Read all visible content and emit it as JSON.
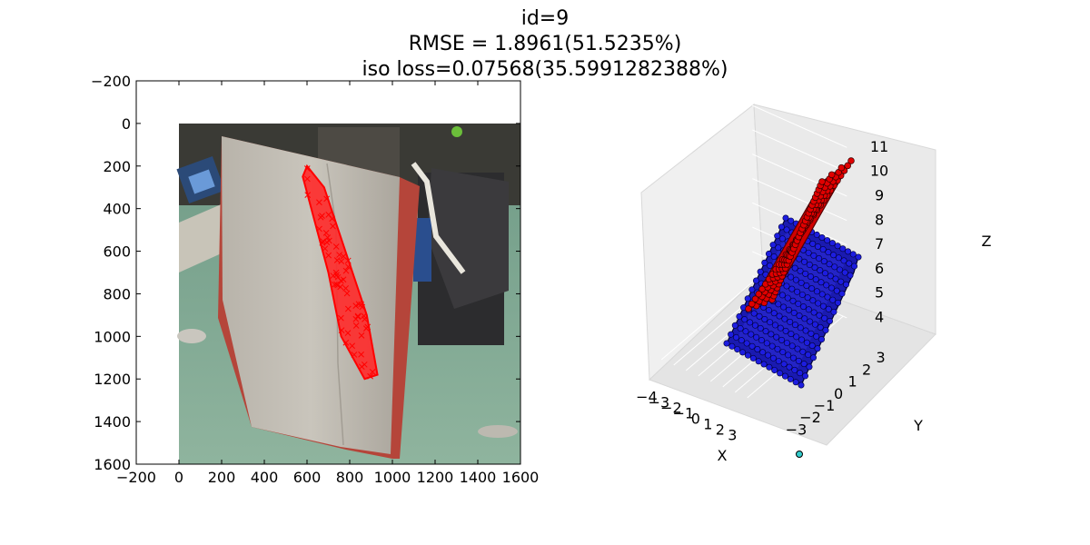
{
  "figure": {
    "title_lines": [
      "id=9",
      "RMSE = 1.8961(51.5235%)",
      "iso loss=0.07568(35.5991282388%)"
    ]
  },
  "chart_data": [
    {
      "type": "scatter",
      "subplot": "image-overlay",
      "title": "",
      "xlabel": "",
      "ylabel": "",
      "xlim": [
        -200,
        1600
      ],
      "ylim": [
        1600,
        -200
      ],
      "xticks": [
        "−200",
        "0",
        "200",
        "400",
        "600",
        "800",
        "1000",
        "1200",
        "1400",
        "1600"
      ],
      "yticks": [
        "−200",
        "0",
        "200",
        "400",
        "600",
        "800",
        "1000",
        "1200",
        "1400",
        "1600"
      ],
      "image_extent": {
        "x": [
          0,
          1600
        ],
        "y": [
          0,
          1600
        ]
      },
      "image_description": "photo of a white cushion hanging in an office",
      "grid": false,
      "series": [
        {
          "marker": "x",
          "color": "#ff0000",
          "outline": [
            [
              600,
              200
            ],
            [
              680,
              300
            ],
            [
              780,
              600
            ],
            [
              880,
              900
            ],
            [
              930,
              1180
            ],
            [
              870,
              1200
            ],
            [
              760,
              1000
            ],
            [
              700,
              700
            ],
            [
              620,
              400
            ],
            [
              580,
              250
            ]
          ]
        }
      ]
    },
    {
      "type": "scatter",
      "subplot": "3d",
      "title": "",
      "xlabel": "X",
      "ylabel": "Y",
      "zlabel": "Z",
      "xticks": [
        "−4",
        "−3",
        "−2",
        "−1",
        "0",
        "1",
        "2",
        "3"
      ],
      "yticks": [
        "−3",
        "−2",
        "−1",
        "0",
        "1",
        "2",
        "3"
      ],
      "zticks": [
        "4",
        "5",
        "6",
        "7",
        "8",
        "9",
        "10",
        "11"
      ],
      "xlim": [
        -4,
        3
      ],
      "ylim": [
        -3,
        3
      ],
      "zlim": [
        4,
        11
      ],
      "grid": true,
      "series": [
        {
          "color": "#0000cc",
          "marker": "o",
          "points": [
            [
              -1.5,
              2.8,
              7.0
            ],
            [
              3.3,
              3.0,
              7.3
            ],
            [
              -3.5,
              -1.8,
              4.1
            ],
            [
              1.5,
              -2.5,
              4.2
            ]
          ]
        },
        {
          "color": "#dd0000",
          "marker": "o",
          "points": [
            [
              -2.2,
              1.5,
              5.2
            ],
            [
              -0.2,
              -0.6,
              11.2
            ]
          ]
        },
        {
          "color": "#33cccc",
          "marker": "o",
          "points": [
            [
              2.6,
              -2.0,
              4.0
            ]
          ]
        }
      ]
    }
  ]
}
